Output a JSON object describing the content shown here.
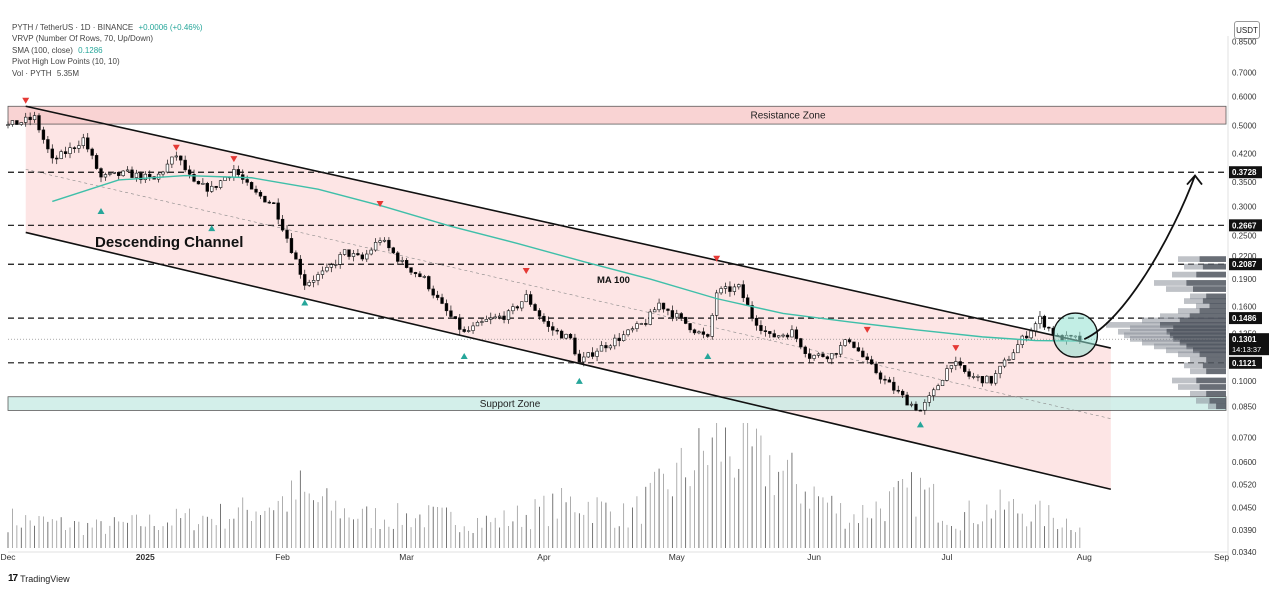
{
  "header": {
    "symbol_line": "PYTH / TetherUS · 1D · BINANCE",
    "change": "+0.0006 (+0.46%)",
    "indicators": [
      "VRVP (Number Of Rows, 70, Up/Down)",
      "SMA (100, close)",
      "Pivot High Low Points (10, 10)",
      "Vol · PYTH"
    ],
    "sma_value": "0.1286",
    "vol_value": "5.35M"
  },
  "currency": "USDT",
  "brand": "TradingView",
  "colors": {
    "up": "#ffffff",
    "down": "#000000",
    "ma": "#3fbfa9",
    "resistance_fill": "#f8c9c9",
    "support_fill": "#c9ece6",
    "channel_fill": "#fde1e1",
    "pivot_high": "#e53935",
    "pivot_low": "#26a69a",
    "accent_circle": "#8fe0cf"
  },
  "chart_data": {
    "type": "candlestick",
    "scale": "log",
    "ylim": [
      0.034,
      0.88
    ],
    "y_ticks": [
      "0.8500",
      "0.7000",
      "0.6000",
      "0.5000",
      "0.4200",
      "0.3500",
      "0.3000",
      "0.2500",
      "0.2200",
      "0.1900",
      "0.1600",
      "0.1350",
      "0.1000",
      "0.0850",
      "0.0700",
      "0.0600",
      "0.0520",
      "0.0450",
      "0.0390",
      "0.0340"
    ],
    "x_ticks": [
      "Dec",
      "2025",
      "Feb",
      "Mar",
      "Apr",
      "May",
      "Jun",
      "Jul",
      "Aug",
      "Sep"
    ],
    "x_tick_days": [
      0,
      31,
      62,
      90,
      121,
      151,
      182,
      212,
      243,
      274
    ],
    "x_range_days": [
      0,
      275
    ],
    "levels": [
      {
        "price": 0.3728,
        "label": "0.3728"
      },
      {
        "price": 0.2667,
        "label": "0.2667"
      },
      {
        "price": 0.2087,
        "label": "0.2087"
      },
      {
        "price": 0.1486,
        "label": "0.1486"
      },
      {
        "price": 0.1121,
        "label": "0.1121"
      }
    ],
    "current_price": {
      "value": 0.1301,
      "label": "0.1301",
      "countdown": "14:13:37"
    },
    "zones": [
      {
        "name": "Resistance Zone",
        "from": 0.505,
        "to": 0.565
      },
      {
        "name": "Support Zone",
        "from": 0.083,
        "to": 0.0905
      }
    ],
    "annotations": {
      "channel_label": "Descending Channel",
      "ma_label": "MA 100"
    },
    "channel": {
      "upper": [
        [
          4,
          0.565
        ],
        [
          249,
          0.123
        ]
      ],
      "lower": [
        [
          4,
          0.255
        ],
        [
          249,
          0.0505
        ]
      ]
    },
    "ma100": [
      [
        10,
        0.31
      ],
      [
        25,
        0.355
      ],
      [
        40,
        0.365
      ],
      [
        55,
        0.36
      ],
      [
        70,
        0.335
      ],
      [
        85,
        0.3
      ],
      [
        100,
        0.265
      ],
      [
        115,
        0.238
      ],
      [
        130,
        0.212
      ],
      [
        145,
        0.19
      ],
      [
        160,
        0.168
      ],
      [
        175,
        0.153
      ],
      [
        190,
        0.145
      ],
      [
        205,
        0.138
      ],
      [
        220,
        0.132
      ],
      [
        232,
        0.129
      ],
      [
        242,
        0.1286
      ]
    ],
    "pivot_highs": [
      [
        4,
        0.585
      ],
      [
        38,
        0.435
      ],
      [
        51,
        0.405
      ],
      [
        84,
        0.305
      ],
      [
        117,
        0.2
      ],
      [
        160,
        0.216
      ],
      [
        194,
        0.138
      ],
      [
        214,
        0.123
      ]
    ],
    "pivot_lows": [
      [
        21,
        0.292
      ],
      [
        46,
        0.262
      ],
      [
        67,
        0.164
      ],
      [
        103,
        0.117
      ],
      [
        129,
        0.1
      ],
      [
        158,
        0.117
      ],
      [
        206,
        0.076
      ]
    ],
    "candle_anchors": [
      [
        0,
        0.5
      ],
      [
        6,
        0.525
      ],
      [
        10,
        0.4
      ],
      [
        14,
        0.43
      ],
      [
        17,
        0.46
      ],
      [
        21,
        0.36
      ],
      [
        27,
        0.37
      ],
      [
        33,
        0.355
      ],
      [
        38,
        0.415
      ],
      [
        42,
        0.345
      ],
      [
        46,
        0.335
      ],
      [
        51,
        0.38
      ],
      [
        55,
        0.33
      ],
      [
        60,
        0.305
      ],
      [
        64,
        0.23
      ],
      [
        67,
        0.185
      ],
      [
        72,
        0.2
      ],
      [
        76,
        0.225
      ],
      [
        80,
        0.215
      ],
      [
        84,
        0.245
      ],
      [
        89,
        0.21
      ],
      [
        94,
        0.19
      ],
      [
        98,
        0.16
      ],
      [
        103,
        0.135
      ],
      [
        108,
        0.146
      ],
      [
        113,
        0.152
      ],
      [
        117,
        0.17
      ],
      [
        122,
        0.14
      ],
      [
        127,
        0.13
      ],
      [
        129,
        0.112
      ],
      [
        133,
        0.122
      ],
      [
        139,
        0.133
      ],
      [
        144,
        0.145
      ],
      [
        147,
        0.163
      ],
      [
        151,
        0.15
      ],
      [
        155,
        0.138
      ],
      [
        158,
        0.13
      ],
      [
        160,
        0.175
      ],
      [
        165,
        0.18
      ],
      [
        168,
        0.15
      ],
      [
        172,
        0.132
      ],
      [
        177,
        0.136
      ],
      [
        181,
        0.117
      ],
      [
        186,
        0.118
      ],
      [
        190,
        0.13
      ],
      [
        194,
        0.112
      ],
      [
        198,
        0.1
      ],
      [
        203,
        0.088
      ],
      [
        206,
        0.083
      ],
      [
        209,
        0.093
      ],
      [
        213,
        0.113
      ],
      [
        217,
        0.103
      ],
      [
        222,
        0.1
      ],
      [
        225,
        0.112
      ],
      [
        229,
        0.13
      ],
      [
        233,
        0.148
      ],
      [
        237,
        0.131
      ],
      [
        242,
        0.1301
      ]
    ],
    "volume_anchors": [
      [
        0,
        0.28
      ],
      [
        20,
        0.2
      ],
      [
        50,
        0.32
      ],
      [
        66,
        0.5
      ],
      [
        80,
        0.3
      ],
      [
        95,
        0.3
      ],
      [
        110,
        0.25
      ],
      [
        129,
        0.45
      ],
      [
        140,
        0.3
      ],
      [
        160,
        1.0
      ],
      [
        170,
        0.85
      ],
      [
        190,
        0.3
      ],
      [
        206,
        0.55
      ],
      [
        214,
        0.3
      ],
      [
        225,
        0.4
      ],
      [
        240,
        0.25
      ]
    ],
    "volume_profile": [
      [
        0.215,
        0.4
      ],
      [
        0.205,
        0.35
      ],
      [
        0.195,
        0.45
      ],
      [
        0.185,
        0.6
      ],
      [
        0.178,
        0.5
      ],
      [
        0.17,
        0.3
      ],
      [
        0.165,
        0.35
      ],
      [
        0.16,
        0.25
      ],
      [
        0.155,
        0.4
      ],
      [
        0.15,
        0.55
      ],
      [
        0.146,
        0.7
      ],
      [
        0.142,
        1.0
      ],
      [
        0.139,
        0.8
      ],
      [
        0.136,
        0.9
      ],
      [
        0.133,
        0.85
      ],
      [
        0.13,
        0.8
      ],
      [
        0.127,
        0.7
      ],
      [
        0.124,
        0.6
      ],
      [
        0.121,
        0.5
      ],
      [
        0.118,
        0.4
      ],
      [
        0.114,
        0.3
      ],
      [
        0.11,
        0.35
      ],
      [
        0.106,
        0.3
      ],
      [
        0.1,
        0.45
      ],
      [
        0.096,
        0.4
      ],
      [
        0.092,
        0.3
      ],
      [
        0.088,
        0.25
      ],
      [
        0.085,
        0.15
      ]
    ],
    "projection": [
      [
        243,
        0.1301
      ],
      [
        252,
        0.145
      ],
      [
        263,
        0.25
      ],
      [
        268,
        0.365
      ]
    ]
  }
}
